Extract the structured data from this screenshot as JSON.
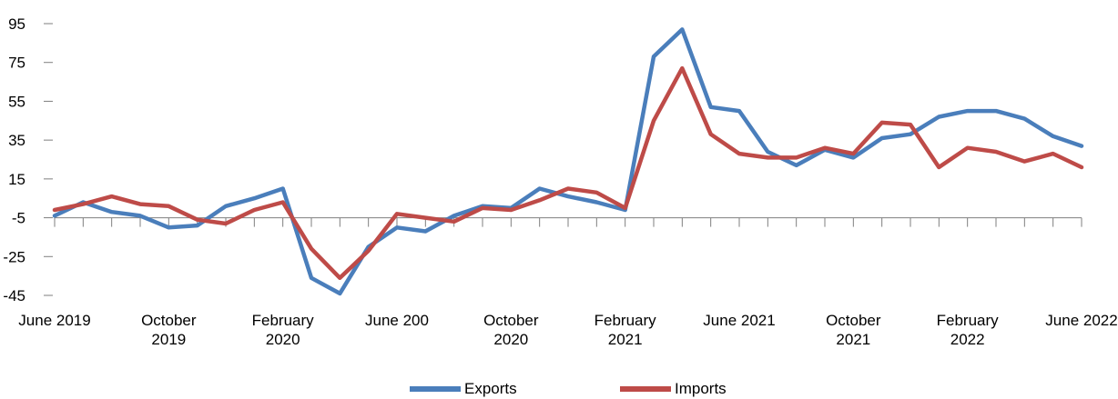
{
  "chart_data": {
    "type": "line",
    "title": "",
    "xlabel": "",
    "ylabel": "",
    "ylim": [
      -45,
      95
    ],
    "yticks": [
      95,
      75,
      55,
      35,
      15,
      -5,
      -25,
      -45
    ],
    "x_axis_crosses_at": -5,
    "grid": false,
    "legend_position": "bottom",
    "x": [
      "2019-06",
      "2019-07",
      "2019-08",
      "2019-09",
      "2019-10",
      "2019-11",
      "2019-12",
      "2020-01",
      "2020-02",
      "2020-03",
      "2020-04",
      "2020-05",
      "2020-06",
      "2020-07",
      "2020-08",
      "2020-09",
      "2020-10",
      "2020-11",
      "2020-12",
      "2021-01",
      "2021-02",
      "2021-03",
      "2021-04",
      "2021-05",
      "2021-06",
      "2021-07",
      "2021-08",
      "2021-09",
      "2021-10",
      "2021-11",
      "2021-12",
      "2022-01",
      "2022-02",
      "2022-03",
      "2022-04",
      "2022-05",
      "2022-06"
    ],
    "x_tick_labels": [
      {
        "x": "2019-06",
        "lines": [
          "June 2019"
        ]
      },
      {
        "x": "2019-10",
        "lines": [
          "October",
          "2019"
        ]
      },
      {
        "x": "2020-02",
        "lines": [
          "February",
          "2020"
        ]
      },
      {
        "x": "2020-06",
        "lines": [
          "June 200"
        ]
      },
      {
        "x": "2020-10",
        "lines": [
          "October",
          "2020"
        ]
      },
      {
        "x": "2021-02",
        "lines": [
          "February",
          "2021"
        ]
      },
      {
        "x": "2021-06",
        "lines": [
          "June 2021"
        ]
      },
      {
        "x": "2021-10",
        "lines": [
          "October",
          "2021"
        ]
      },
      {
        "x": "2022-02",
        "lines": [
          "February",
          "2022"
        ]
      },
      {
        "x": "2022-06",
        "lines": [
          "June 2022"
        ]
      }
    ],
    "series": [
      {
        "name": "Exports",
        "color": "#4a7ebb",
        "values": [
          -4,
          3,
          -2,
          -4,
          -10,
          -9,
          1,
          5,
          10,
          -36,
          -44,
          -20,
          -10,
          -12,
          -4,
          1,
          0,
          10,
          6,
          3,
          -1,
          78,
          92,
          52,
          50,
          29,
          22,
          30,
          26,
          36,
          38,
          47,
          50,
          50,
          46,
          37,
          32
        ]
      },
      {
        "name": "Imports",
        "color": "#be4b48",
        "values": [
          -1,
          2,
          6,
          2,
          1,
          -6,
          -8,
          -1,
          3,
          -21,
          -36,
          -22,
          -3,
          -5,
          -7,
          0,
          -1,
          4,
          10,
          8,
          0,
          45,
          72,
          38,
          28,
          26,
          26,
          31,
          28,
          44,
          43,
          21,
          31,
          29,
          24,
          28,
          21
        ]
      }
    ]
  }
}
